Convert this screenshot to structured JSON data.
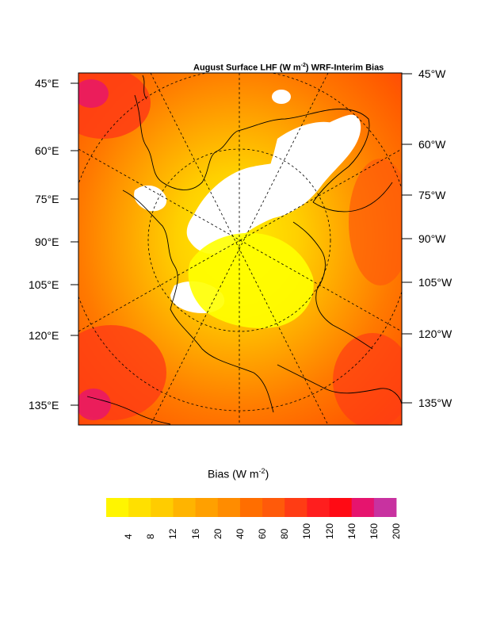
{
  "map": {
    "title_main": "August Surface LHF (W m",
    "title_sup": "-2",
    "title_end": ") WRF-Interim Bias",
    "projection": "polar-stereographic",
    "left_labels": [
      "45°E",
      "60°E",
      "75°E",
      "90°E",
      "105°E",
      "120°E",
      "135°E"
    ],
    "right_labels": [
      "45°W",
      "60°W",
      "75°W",
      "90°W",
      "105°W",
      "120°W",
      "135°W"
    ],
    "pole_region_color": "#ffff00",
    "ice_color": "#ffffff"
  },
  "colorbar": {
    "title_main": "Bias (W m",
    "title_sup": "-2",
    "title_end": ")",
    "ticks": [
      "4",
      "8",
      "12",
      "16",
      "20",
      "40",
      "60",
      "80",
      "100",
      "120",
      "140",
      "160",
      "200"
    ],
    "colors": [
      "#fff500",
      "#ffe000",
      "#ffcc00",
      "#ffb400",
      "#ffa000",
      "#ff8c00",
      "#ff6e00",
      "#ff5a0a",
      "#ff3c14",
      "#ff1e1e",
      "#ff0a14",
      "#e6146e",
      "#c832a0"
    ]
  }
}
